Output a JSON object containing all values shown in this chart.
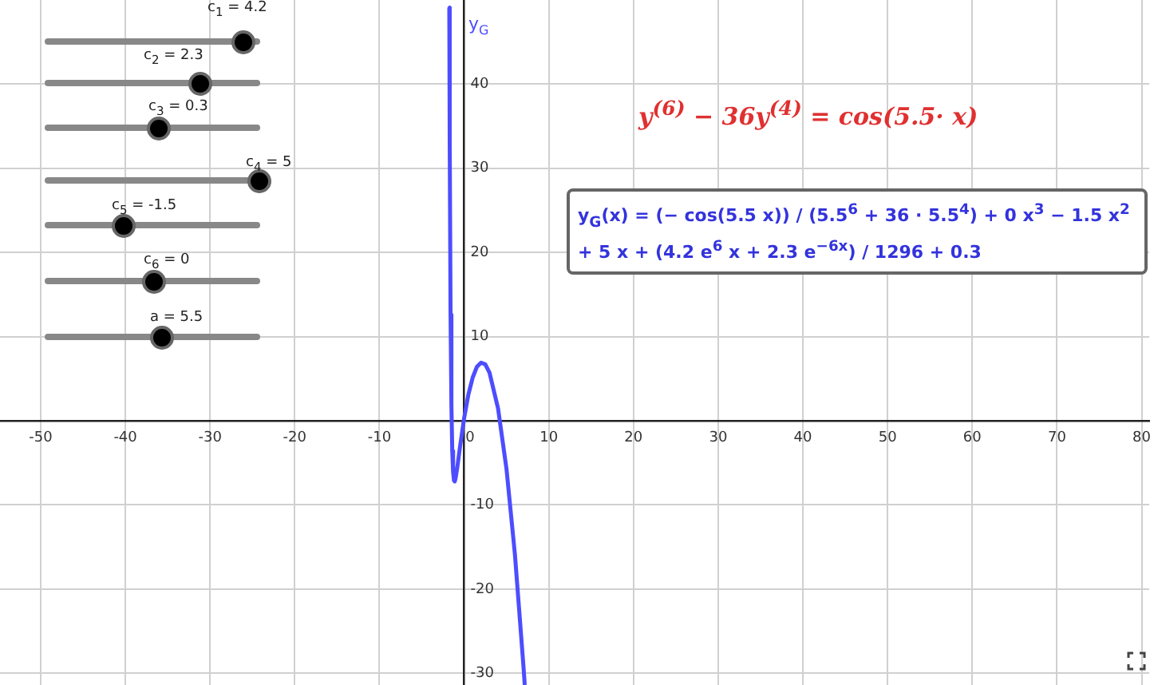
{
  "chart_data": {
    "type": "line",
    "x": [
      -1.75,
      -1.7,
      -1.6,
      -1.5,
      -1.4,
      -1.3,
      -1.2,
      -1.1,
      -1.0,
      -0.8,
      -0.5,
      0,
      0.5,
      1,
      1.5,
      2,
      2.5,
      3,
      4,
      5,
      6,
      7,
      7.16
    ],
    "series": [
      {
        "name": "y$_{G}$",
        "color": "#4d4dff",
        "values": [
          49.1,
          33,
          12.6,
          1.9,
          -3.6,
          -6.1,
          -7.1,
          -7.2,
          -6.8,
          -5.5,
          -3.2,
          0.3,
          3.1,
          5.1,
          6.4,
          6.9,
          6.7,
          5.7,
          1.5,
          -5.7,
          -15.9,
          -29.1,
          -31.4
        ]
      }
    ],
    "xlim": [
      -54.8,
      80.9
    ],
    "ylim": [
      -31.4,
      50
    ],
    "xticks": [
      -50,
      -40,
      -30,
      -20,
      -10,
      0,
      10,
      20,
      30,
      40,
      50,
      60,
      70,
      80
    ],
    "yticks": [
      -30,
      -20,
      -10,
      10,
      20,
      30,
      40
    ],
    "grid": true,
    "legend": false,
    "marker": "none",
    "line_style": "solid",
    "annotations": [
      "y$^{(6)}$ − 36y$^{(4)}$ = cos(5.5· x)",
      "y$_{G}$(x) = (− cos(5.5 x)) / (5.5$^{6}$ + 36 · 5.5$^{4}$) + 0 x$^{3}$ − 1.5 x$^{2}$ + 5 x + (4.2 e$^{6}$ x + 2.3 e$^{−6x}$) / 1296 + 0.3",
      "c$_{1}$ = 4.2",
      "c$_{2}$ = 2.3",
      "c$_{3}$ = 0.3",
      "c$_{4}$ = 5",
      "c$_{5}$ = -1.5",
      "c$_{6}$ = 0",
      "a = 5.5"
    ]
  }
}
